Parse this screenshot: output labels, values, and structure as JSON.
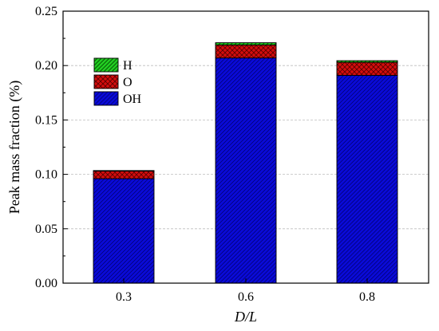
{
  "chart_data": {
    "type": "bar",
    "stacked": true,
    "categories": [
      "0.3",
      "0.6",
      "0.8"
    ],
    "series": [
      {
        "name": "OH",
        "values": [
          0.096,
          0.207,
          0.191
        ],
        "color": "#0a0ad8",
        "pattern": "diagonal-hatch"
      },
      {
        "name": "O",
        "values": [
          0.007,
          0.012,
          0.012
        ],
        "color": "#d40d0d",
        "pattern": "crosshatch"
      },
      {
        "name": "H",
        "values": [
          0.0005,
          0.002,
          0.0015
        ],
        "color": "#22cc22",
        "pattern": "diagonal-hatch"
      }
    ],
    "xlabel": "D/L",
    "ylabel": "Peak mass fraction (%)",
    "ylim": [
      0,
      0.25
    ],
    "yticks": [
      "0.00",
      "0.05",
      "0.10",
      "0.15",
      "0.20",
      "0.25"
    ],
    "grid": "horizontal-dashed",
    "legend_position": "top-left",
    "legend_order": [
      "H",
      "O",
      "OH"
    ]
  }
}
